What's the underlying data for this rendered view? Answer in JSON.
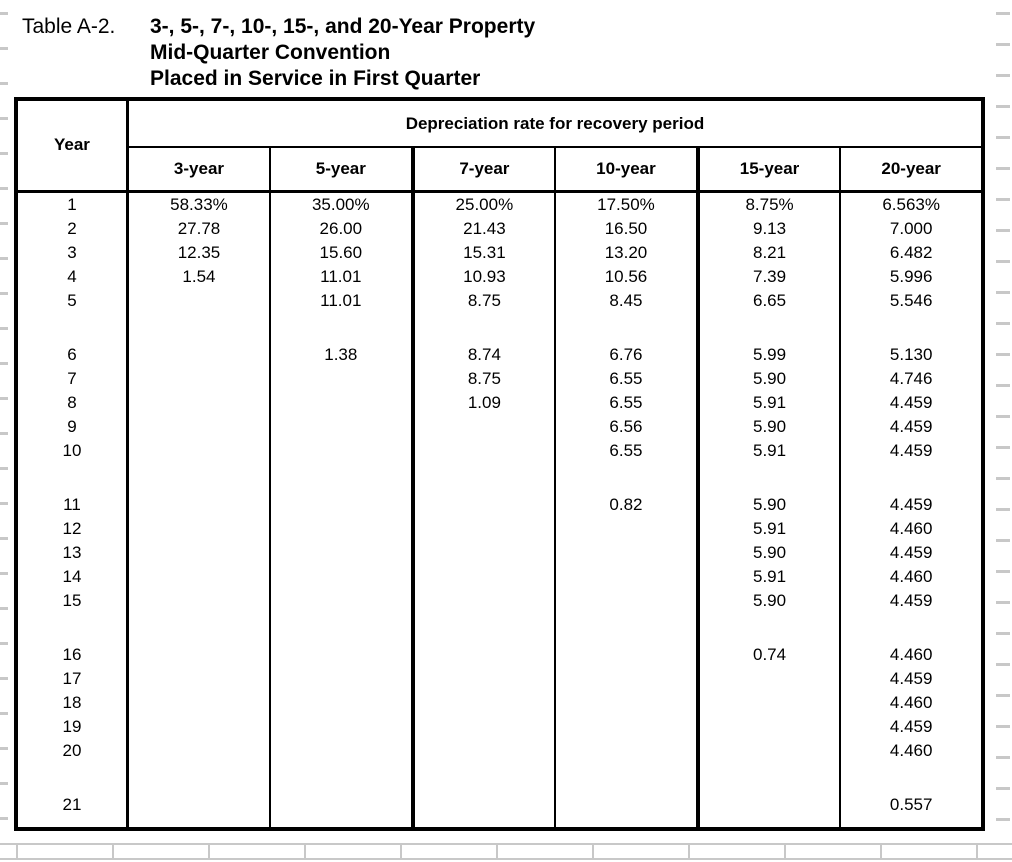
{
  "title": {
    "label": "Table A-2.",
    "lines": [
      "3-, 5-, 7-, 10-, 15-, and 20-Year Property",
      "Mid-Quarter Convention",
      "Placed in Service in First Quarter"
    ]
  },
  "table": {
    "year_header": "Year",
    "span_header": "Depreciation rate for recovery period",
    "columns": [
      "3-year",
      "5-year",
      "7-year",
      "10-year",
      "15-year",
      "20-year"
    ],
    "gap_before_years": [
      6,
      11,
      16,
      21
    ],
    "rows": [
      {
        "year": "1",
        "values": [
          "58.33%",
          "35.00%",
          "25.00%",
          "17.50%",
          "8.75%",
          "6.563%"
        ]
      },
      {
        "year": "2",
        "values": [
          "27.78",
          "26.00",
          "21.43",
          "16.50",
          "9.13",
          "7.000"
        ]
      },
      {
        "year": "3",
        "values": [
          "12.35",
          "15.60",
          "15.31",
          "13.20",
          "8.21",
          "6.482"
        ]
      },
      {
        "year": "4",
        "values": [
          "1.54",
          "11.01",
          "10.93",
          "10.56",
          "7.39",
          "5.996"
        ]
      },
      {
        "year": "5",
        "values": [
          "",
          "11.01",
          "8.75",
          "8.45",
          "6.65",
          "5.546"
        ]
      },
      {
        "year": "6",
        "values": [
          "",
          "1.38",
          "8.74",
          "6.76",
          "5.99",
          "5.130"
        ]
      },
      {
        "year": "7",
        "values": [
          "",
          "",
          "8.75",
          "6.55",
          "5.90",
          "4.746"
        ]
      },
      {
        "year": "8",
        "values": [
          "",
          "",
          "1.09",
          "6.55",
          "5.91",
          "4.459"
        ]
      },
      {
        "year": "9",
        "values": [
          "",
          "",
          "",
          "6.56",
          "5.90",
          "4.459"
        ]
      },
      {
        "year": "10",
        "values": [
          "",
          "",
          "",
          "6.55",
          "5.91",
          "4.459"
        ]
      },
      {
        "year": "11",
        "values": [
          "",
          "",
          "",
          "0.82",
          "5.90",
          "4.459"
        ]
      },
      {
        "year": "12",
        "values": [
          "",
          "",
          "",
          "",
          "5.91",
          "4.460"
        ]
      },
      {
        "year": "13",
        "values": [
          "",
          "",
          "",
          "",
          "5.90",
          "4.459"
        ]
      },
      {
        "year": "14",
        "values": [
          "",
          "",
          "",
          "",
          "5.91",
          "4.460"
        ]
      },
      {
        "year": "15",
        "values": [
          "",
          "",
          "",
          "",
          "5.90",
          "4.459"
        ]
      },
      {
        "year": "16",
        "values": [
          "",
          "",
          "",
          "",
          "0.74",
          "4.460"
        ]
      },
      {
        "year": "17",
        "values": [
          "",
          "",
          "",
          "",
          "",
          "4.459"
        ]
      },
      {
        "year": "18",
        "values": [
          "",
          "",
          "",
          "",
          "",
          "4.460"
        ]
      },
      {
        "year": "19",
        "values": [
          "",
          "",
          "",
          "",
          "",
          "4.459"
        ]
      },
      {
        "year": "20",
        "values": [
          "",
          "",
          "",
          "",
          "",
          "4.460"
        ]
      },
      {
        "year": "21",
        "values": [
          "",
          "",
          "",
          "",
          "",
          "0.557"
        ]
      }
    ]
  },
  "colors": {
    "background": "#ffffff",
    "table_border": "#000000",
    "spreadsheet_grid": "#c8c8c8"
  }
}
